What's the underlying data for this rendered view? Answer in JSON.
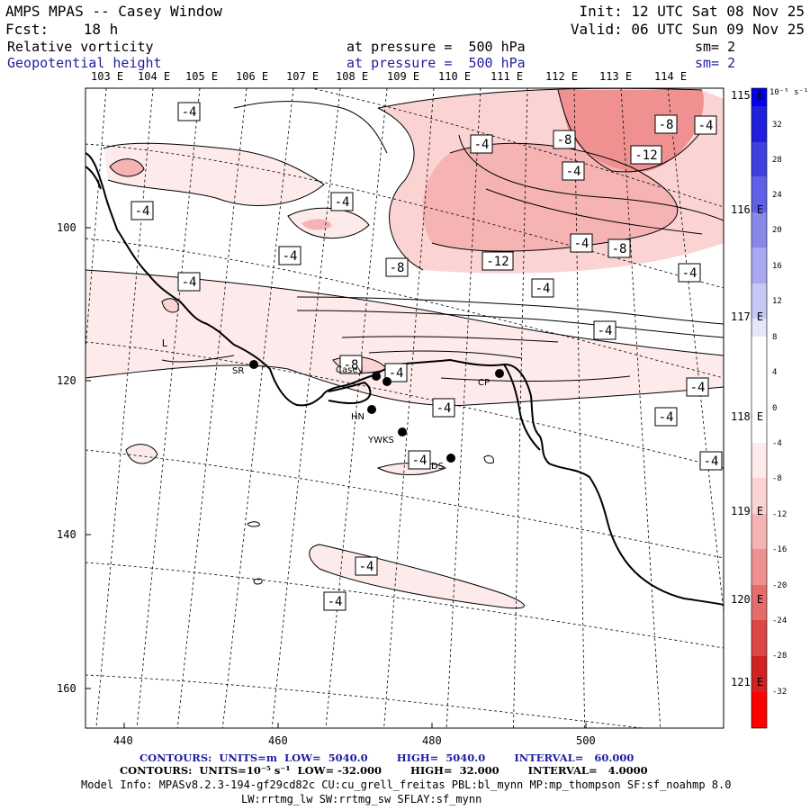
{
  "header": {
    "left_line1": "AMPS MPAS -- Casey Window",
    "left_line2": "Fcst:    18 h",
    "init": "Init: 12 UTC Sat 08 Nov 25",
    "valid": "Valid: 06 UTC Sun 09 Nov 25",
    "field1_name": "Relative vorticity",
    "field1_level": "at pressure =  500 hPa",
    "field1_sm": "sm= 2",
    "field2_name": "Geopotential height",
    "field2_level": "at pressure =  500 hPa",
    "field2_sm": "sm= 2"
  },
  "colors": {
    "contour_line": "#000000",
    "field2_text": "#1e1ea0",
    "neg_shades": [
      "#fdeaea",
      "#fbd3d3",
      "#f6b3b3",
      "#ef9191",
      "#e66c6c",
      "#dc4646",
      "#d02222",
      "#ff0000"
    ],
    "pos_shades": [
      "#e6e6fa",
      "#c8c8f5",
      "#a8a8f0",
      "#8888ea",
      "#6060e6",
      "#4040e0",
      "#2020dc",
      "#0000e8"
    ]
  },
  "map": {
    "top_lon_labels": [
      "103 E",
      "104 E",
      "105 E",
      "106 E",
      "107 E",
      "108 E",
      "109 E",
      "110 E",
      "111 E",
      "112 E",
      "113 E",
      "114 E"
    ],
    "right_lon_labels": [
      "115 E",
      "116 E",
      "117 E",
      "118 E",
      "119 E",
      "120 E",
      "121 E"
    ],
    "x_ticks": [
      "440",
      "460",
      "480",
      "500"
    ],
    "y_ticks": [
      "100",
      "120",
      "140",
      "160"
    ],
    "contour_labels": [
      "-4",
      "-4",
      "-4",
      "-4",
      "-4",
      "-8",
      "-8",
      "-4",
      "-4",
      "-4",
      "-8",
      "-4",
      "-8",
      "-12",
      "-4",
      "-4",
      "-8",
      "-12",
      "-4",
      "-4",
      "-4",
      "-4",
      "-4",
      "-4",
      "-4",
      "-4",
      "-4",
      "-4",
      "-4",
      "-4"
    ],
    "stations": [
      {
        "name": "SR"
      },
      {
        "name": "Casey"
      },
      {
        "name": "CP"
      },
      {
        "name": "HN"
      },
      {
        "name": "YWKS"
      },
      {
        "name": "DS"
      }
    ],
    "low_marker": "L"
  },
  "colorbar": {
    "units": "10⁻⁵ s⁻¹",
    "labels": [
      "32",
      "28",
      "24",
      "20",
      "16",
      "12",
      "8",
      "4",
      "0",
      "-4",
      "-8",
      "-12",
      "-16",
      "-20",
      "-24",
      "-28",
      "-32"
    ]
  },
  "footer": {
    "contours1": "CONTOURS:  UNITS=m  LOW=  5040.0        HIGH=  5040.0        INTERVAL=   60.000",
    "contours2": "CONTOURS:  UNITS=10⁻⁵ s⁻¹  LOW= -32.000        HIGH=  32.000        INTERVAL=   4.0000",
    "model_info": "Model Info: MPASv8.2.3-194-gf29cd82c CU:cu_grell_freitas PBL:bl_mynn MP:mp_thompson SF:sf_noahmp 8.0",
    "model_info2": "LW:rrtmg_lw SW:rrtmg_sw SFLAY:sf_mynn"
  }
}
